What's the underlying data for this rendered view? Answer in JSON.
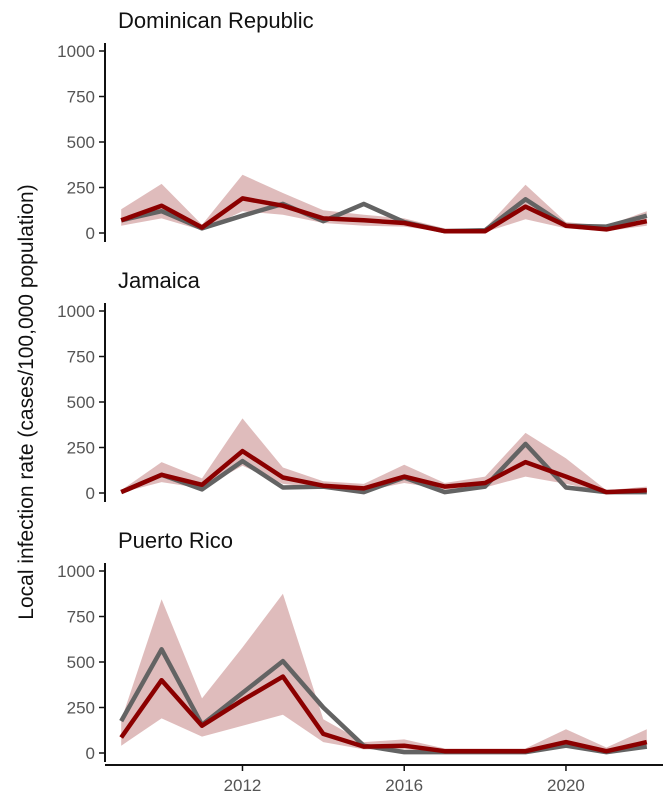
{
  "chart_data": {
    "type": "line",
    "ylabel": "Local infection rate (cases/100,000 population)",
    "xlabel": "",
    "x": [
      2009,
      2010,
      2011,
      2012,
      2013,
      2014,
      2015,
      2016,
      2017,
      2018,
      2019,
      2020,
      2021,
      2022
    ],
    "xticks": [
      2012,
      2016,
      2020
    ],
    "xlim": [
      2008.6,
      2022.4
    ],
    "ylim": [
      0,
      1000
    ],
    "yticks": [
      0,
      250,
      500,
      750,
      1000
    ],
    "grid": false,
    "colors": {
      "observed": "#636363",
      "model": "#8b0000",
      "band": "#dcb5b5"
    },
    "panels": [
      {
        "title": "Dominican Republic",
        "observed": [
          70,
          120,
          25,
          95,
          160,
          65,
          160,
          60,
          10,
          15,
          185,
          40,
          35,
          95
        ],
        "model": [
          70,
          150,
          30,
          190,
          150,
          80,
          70,
          55,
          10,
          10,
          145,
          40,
          20,
          65
        ],
        "band_low": [
          40,
          80,
          15,
          120,
          100,
          55,
          40,
          35,
          5,
          5,
          75,
          25,
          10,
          40
        ],
        "band_high": [
          130,
          270,
          45,
          320,
          220,
          125,
          100,
          80,
          25,
          25,
          265,
          60,
          40,
          120
        ]
      },
      {
        "title": "Jamaica",
        "observed": [
          5,
          100,
          20,
          175,
          30,
          35,
          5,
          85,
          5,
          35,
          270,
          30,
          5,
          5
        ],
        "model": [
          5,
          100,
          45,
          230,
          85,
          40,
          25,
          90,
          35,
          55,
          170,
          90,
          5,
          15
        ],
        "band_low": [
          2,
          60,
          25,
          150,
          50,
          25,
          10,
          55,
          20,
          30,
          90,
          50,
          2,
          5
        ],
        "band_high": [
          15,
          170,
          80,
          410,
          140,
          65,
          50,
          155,
          55,
          90,
          330,
          190,
          15,
          35
        ]
      },
      {
        "title": "Puerto Rico",
        "observed": [
          175,
          570,
          155,
          330,
          505,
          250,
          40,
          5,
          5,
          5,
          5,
          40,
          5,
          35
        ],
        "model": [
          85,
          400,
          150,
          290,
          420,
          105,
          35,
          40,
          10,
          10,
          10,
          60,
          10,
          60
        ],
        "band_low": [
          40,
          190,
          90,
          150,
          210,
          60,
          20,
          20,
          5,
          5,
          5,
          30,
          5,
          30
        ],
        "band_high": [
          180,
          845,
          300,
          580,
          875,
          185,
          60,
          75,
          25,
          25,
          25,
          130,
          30,
          130
        ]
      }
    ]
  }
}
